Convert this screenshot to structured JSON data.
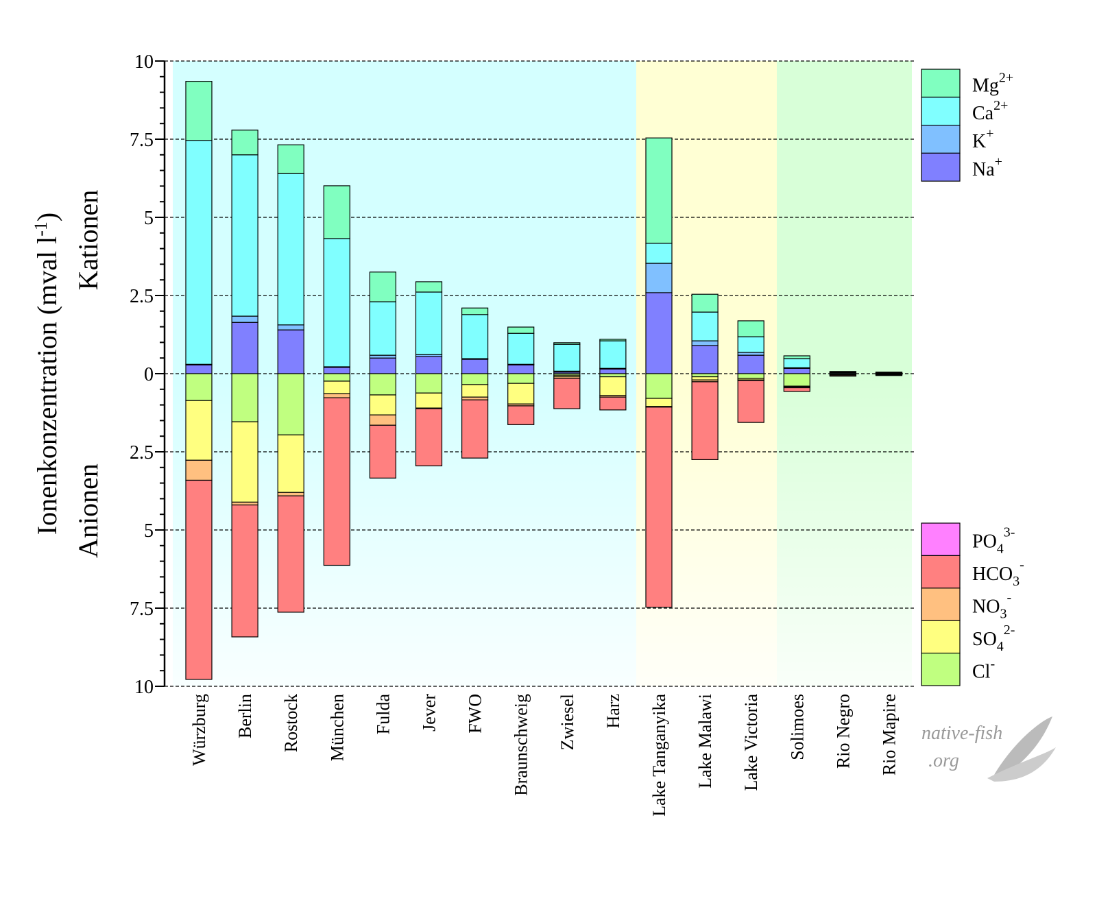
{
  "chart_data": {
    "type": "bar",
    "stacked": true,
    "diverging": true,
    "ylabel": {
      "main": "Ionenkonzentration (mval l",
      "sup": "-1",
      "end": ")"
    },
    "upper_label": "Kationen",
    "lower_label": "Anionen",
    "ylim": [
      -10,
      10
    ],
    "yticks": [
      10,
      7.5,
      5,
      2.5,
      0,
      -2.5,
      -5,
      -7.5,
      -10
    ],
    "ytick_labels": [
      "10",
      "7.5",
      "5",
      "2.5",
      "0",
      "2.5",
      "5",
      "7.5",
      "10"
    ],
    "grid": "dashed horizontal at major ticks",
    "categories": [
      "Würzburg",
      "Berlin",
      "Rostock",
      "München",
      "Fulda",
      "Jever",
      "FWO",
      "Braunschweig",
      "Zwiesel",
      "Harz",
      "Lake Tanganyika",
      "Lake Malawi",
      "Lake Victoria",
      "Solimoes",
      "Rio Negro",
      "Rio Mapire"
    ],
    "background_groups": [
      {
        "from": 0,
        "to": 9,
        "color": "#d4ffff"
      },
      {
        "from": 10,
        "to": 12,
        "color": "#ffffd4"
      },
      {
        "from": 13,
        "to": 15,
        "color": "#d8ffd8"
      }
    ],
    "cation_series": [
      {
        "key": "Na",
        "label": "Na",
        "sup": "+",
        "sub": "",
        "color": "#8080ff",
        "values": [
          0.28,
          1.64,
          1.4,
          0.2,
          0.5,
          0.55,
          0.46,
          0.28,
          0.05,
          0.15,
          2.59,
          0.9,
          0.59,
          0.17,
          0.03,
          0.02
        ]
      },
      {
        "key": "K",
        "label": "K",
        "sup": "+",
        "sub": "",
        "color": "#80c0ff",
        "values": [
          0.02,
          0.2,
          0.16,
          0.02,
          0.09,
          0.06,
          0.02,
          0.02,
          0.03,
          0.02,
          0.94,
          0.15,
          0.09,
          0.02,
          0.01,
          0.01
        ]
      },
      {
        "key": "Ca",
        "label": "Ca",
        "sup": "2+",
        "sub": "",
        "color": "#80ffff",
        "values": [
          7.16,
          5.16,
          4.84,
          4.1,
          1.71,
          2.0,
          1.41,
          0.99,
          0.86,
          0.88,
          0.64,
          0.92,
          0.5,
          0.29,
          0.02,
          0.01
        ]
      },
      {
        "key": "Mg",
        "label": "Mg",
        "sup": "2+",
        "sub": "",
        "color": "#80ffc0",
        "values": [
          1.89,
          0.79,
          0.92,
          1.69,
          0.95,
          0.33,
          0.21,
          0.2,
          0.05,
          0.05,
          3.37,
          0.57,
          0.51,
          0.09,
          0.01,
          0.01
        ]
      }
    ],
    "anion_series": [
      {
        "key": "Cl",
        "label": "Cl",
        "sup": "-",
        "sub": "",
        "color": "#c0ff80",
        "values": [
          0.86,
          1.54,
          1.96,
          0.24,
          0.68,
          0.62,
          0.35,
          0.31,
          0.05,
          0.1,
          0.79,
          0.1,
          0.15,
          0.4,
          0.03,
          0.02
        ]
      },
      {
        "key": "SO4",
        "label": "SO",
        "sub": "4",
        "sup": "2-",
        "color": "#ffff80",
        "values": [
          1.91,
          2.57,
          1.84,
          0.4,
          0.64,
          0.48,
          0.4,
          0.66,
          0.05,
          0.6,
          0.26,
          0.1,
          0.05,
          0.02,
          0.01,
          0.01
        ]
      },
      {
        "key": "NO3",
        "label": "NO",
        "sub": "3",
        "sup": "-",
        "color": "#ffc080",
        "values": [
          0.64,
          0.09,
          0.11,
          0.13,
          0.33,
          0.02,
          0.09,
          0.06,
          0.05,
          0.05,
          0.02,
          0.06,
          0.02,
          0.03,
          0.01,
          0.01
        ]
      },
      {
        "key": "HCO3",
        "label": "HCO",
        "sub": "3",
        "sup": "-",
        "color": "#ff8080",
        "values": [
          6.37,
          4.22,
          3.72,
          5.36,
          1.69,
          1.83,
          1.86,
          0.6,
          0.97,
          0.41,
          6.4,
          2.49,
          1.34,
          0.12,
          0.03,
          0.02
        ]
      },
      {
        "key": "PO4",
        "label": "PO",
        "sub": "4",
        "sup": "3-",
        "color": "#ff80ff",
        "values": [
          0,
          0,
          0,
          0,
          0,
          0,
          0,
          0,
          0,
          0,
          0,
          0,
          0,
          0,
          0,
          0
        ]
      }
    ],
    "legend_placement": "right"
  },
  "watermark": {
    "text": "native-fish .org",
    "icon": "fish-logo"
  }
}
